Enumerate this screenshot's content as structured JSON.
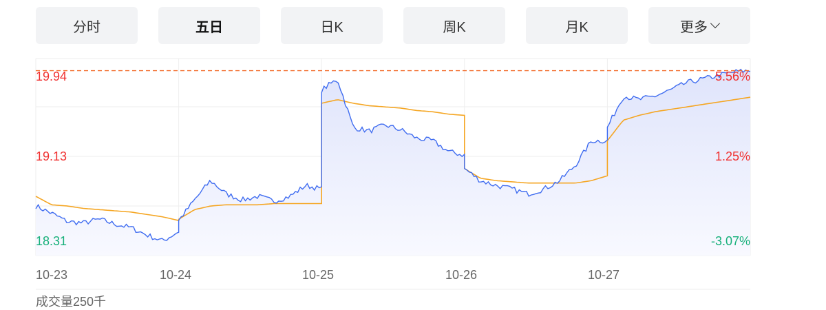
{
  "tabs": [
    {
      "label": "分时"
    },
    {
      "label": "五日",
      "active": true
    },
    {
      "label": "日K"
    },
    {
      "label": "周K"
    },
    {
      "label": "月K"
    },
    {
      "label": "更多",
      "dropdown": true
    }
  ],
  "colors": {
    "price": "#3f6cf0",
    "average": "#f5a623",
    "up": "#f03030",
    "down": "#17b07a",
    "ref_line": "#f26b2a",
    "fill": "#dfe4fb"
  },
  "volume_label": "成交量250千",
  "chart_data": {
    "type": "line",
    "ylim": [
      18.31,
      19.94
    ],
    "y_ticks_left": [
      "19.94",
      "19.13",
      "18.31"
    ],
    "y_ticks_right": [
      "5.56%",
      "1.25%",
      "-3.07%"
    ],
    "x_ticks": [
      "10-23",
      "10-24",
      "10-25",
      "10-26",
      "10-27"
    ],
    "ref_line_value": 19.84,
    "grid": true,
    "series": [
      {
        "key": "price",
        "values": [
          [
            18.72,
            18.66,
            18.59,
            18.58,
            18.61,
            18.57,
            18.54,
            18.48,
            18.43,
            18.51
          ],
          [
            18.6,
            18.77,
            18.93,
            18.82,
            18.77,
            18.8,
            18.76,
            18.8,
            18.89,
            18.86
          ],
          [
            19.68,
            19.77,
            19.37,
            19.34,
            19.39,
            19.35,
            19.28,
            19.26,
            19.17,
            19.14
          ],
          [
            19.03,
            18.93,
            18.89,
            18.86,
            18.82,
            18.86,
            18.93,
            19.06,
            19.26,
            19.26
          ],
          [
            19.37,
            19.63,
            19.6,
            19.63,
            19.68,
            19.74,
            19.77,
            19.8,
            19.83,
            19.84
          ]
        ]
      },
      {
        "key": "average",
        "values": [
          [
            18.8,
            18.73,
            18.72,
            18.7,
            18.69,
            18.68,
            18.67,
            18.65,
            18.63,
            18.6
          ],
          [
            18.61,
            18.69,
            18.72,
            18.73,
            18.73,
            18.73,
            18.74,
            18.74,
            18.74,
            18.74
          ],
          [
            19.57,
            19.6,
            19.57,
            19.55,
            19.54,
            19.53,
            19.51,
            19.5,
            19.48,
            19.47
          ],
          [
            19.03,
            18.95,
            18.93,
            18.92,
            18.91,
            18.91,
            18.91,
            18.91,
            18.93,
            18.97
          ],
          [
            19.26,
            19.43,
            19.47,
            19.5,
            19.52,
            19.54,
            19.56,
            19.58,
            19.6,
            19.62
          ]
        ]
      }
    ]
  }
}
